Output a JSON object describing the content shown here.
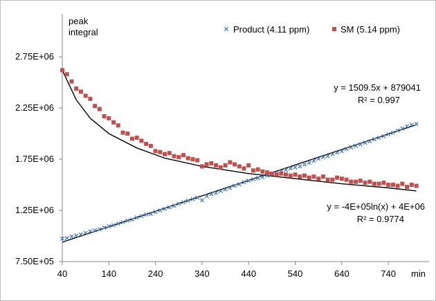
{
  "chart_data": {
    "type": "scatter",
    "title": "",
    "xlabel": "min",
    "ylabel_lines": [
      "peak",
      "integral"
    ],
    "xlim": [
      40,
      820
    ],
    "ylim": [
      750000,
      2900000
    ],
    "x_ticks": [
      40,
      140,
      240,
      340,
      440,
      540,
      640,
      740
    ],
    "x_tick_labels": [
      "40",
      "140",
      "240",
      "340",
      "440",
      "540",
      "640",
      "740"
    ],
    "y_ticks": [
      750000,
      1250000,
      1750000,
      2250000,
      2750000
    ],
    "y_tick_labels": [
      "7.50E+05",
      "1.25E+06",
      "1.75E+06",
      "2.25E+06",
      "2.75E+06"
    ],
    "grid": false,
    "legend_position": "top-right",
    "series": [
      {
        "name": "Product (4.11 ppm)",
        "marker": "x",
        "color": "#4f81bd",
        "x": [
          40,
          50,
          60,
          70,
          80,
          90,
          100,
          110,
          120,
          130,
          140,
          150,
          160,
          170,
          180,
          190,
          200,
          210,
          220,
          230,
          240,
          250,
          260,
          270,
          280,
          290,
          300,
          310,
          320,
          330,
          340,
          350,
          360,
          370,
          380,
          390,
          400,
          410,
          420,
          430,
          440,
          450,
          460,
          470,
          480,
          490,
          500,
          510,
          520,
          530,
          540,
          550,
          560,
          570,
          580,
          590,
          600,
          610,
          620,
          630,
          640,
          650,
          660,
          670,
          680,
          690,
          700,
          710,
          720,
          730,
          740,
          750,
          760,
          770,
          780,
          790,
          800
        ],
        "y": [
          975000,
          980000,
          995000,
          1005000,
          1015000,
          1030000,
          1045000,
          1055000,
          1065000,
          1080000,
          1095000,
          1105000,
          1120000,
          1135000,
          1150000,
          1160000,
          1180000,
          1195000,
          1210000,
          1215000,
          1235000,
          1250000,
          1265000,
          1280000,
          1295000,
          1315000,
          1330000,
          1345000,
          1360000,
          1375000,
          1350000,
          1390000,
          1410000,
          1420000,
          1440000,
          1455000,
          1470000,
          1490000,
          1505000,
          1525000,
          1540000,
          1555000,
          1565000,
          1575000,
          1590000,
          1605000,
          1610000,
          1630000,
          1645000,
          1660000,
          1670000,
          1680000,
          1700000,
          1715000,
          1735000,
          1755000,
          1770000,
          1780000,
          1800000,
          1815000,
          1830000,
          1850000,
          1865000,
          1880000,
          1895000,
          1910000,
          1925000,
          1945000,
          1960000,
          1975000,
          1995000,
          2010000,
          2030000,
          2050000,
          2070000,
          2085000,
          2095000
        ]
      },
      {
        "name": "SM (5.14 ppm)",
        "marker": "square",
        "color": "#c0504d",
        "x": [
          40,
          50,
          60,
          70,
          80,
          90,
          100,
          110,
          120,
          130,
          140,
          150,
          160,
          170,
          180,
          190,
          200,
          210,
          220,
          230,
          240,
          250,
          260,
          270,
          280,
          290,
          300,
          310,
          320,
          330,
          340,
          350,
          360,
          370,
          380,
          390,
          400,
          410,
          420,
          430,
          440,
          450,
          460,
          470,
          480,
          490,
          500,
          510,
          520,
          530,
          540,
          550,
          560,
          570,
          580,
          590,
          600,
          610,
          620,
          630,
          640,
          650,
          660,
          670,
          680,
          690,
          700,
          710,
          720,
          730,
          740,
          750,
          760,
          770,
          780,
          790,
          800
        ],
        "y": [
          2620000,
          2580000,
          2510000,
          2440000,
          2410000,
          2370000,
          2340000,
          2270000,
          2240000,
          2170000,
          2150000,
          2110000,
          2080000,
          2010000,
          2000000,
          1950000,
          1960000,
          1930000,
          1900000,
          1880000,
          1830000,
          1820000,
          1800000,
          1810000,
          1780000,
          1770000,
          1790000,
          1760000,
          1750000,
          1740000,
          1680000,
          1700000,
          1710000,
          1690000,
          1670000,
          1690000,
          1720000,
          1700000,
          1680000,
          1660000,
          1690000,
          1640000,
          1650000,
          1630000,
          1620000,
          1610000,
          1600000,
          1610000,
          1600000,
          1590000,
          1600000,
          1580000,
          1590000,
          1570000,
          1580000,
          1560000,
          1580000,
          1550000,
          1550000,
          1570000,
          1560000,
          1550000,
          1530000,
          1530000,
          1540000,
          1520000,
          1530000,
          1510000,
          1510000,
          1520000,
          1500000,
          1500000,
          1490000,
          1510000,
          1480000,
          1500000,
          1490000
        ]
      }
    ],
    "fits": [
      {
        "name": "product-linear-fit",
        "type": "linear",
        "slope": 1509.5,
        "intercept": 879041,
        "x_range": [
          40,
          800
        ],
        "equation": "y = 1509.5x + 879041",
        "r2": "R² = 0.997"
      },
      {
        "name": "sm-log-fit",
        "type": "logarithmic",
        "points": [
          [
            40,
            2620000
          ],
          [
            70,
            2330000
          ],
          [
            100,
            2150000
          ],
          [
            140,
            2000000
          ],
          [
            200,
            1860000
          ],
          [
            260,
            1760000
          ],
          [
            340,
            1680000
          ],
          [
            440,
            1610000
          ],
          [
            540,
            1560000
          ],
          [
            640,
            1510000
          ],
          [
            740,
            1470000
          ],
          [
            800,
            1440000
          ]
        ],
        "equation": "y = -4E+05ln(x) + 4E+06",
        "r2": "R² = 0.9774"
      }
    ]
  }
}
